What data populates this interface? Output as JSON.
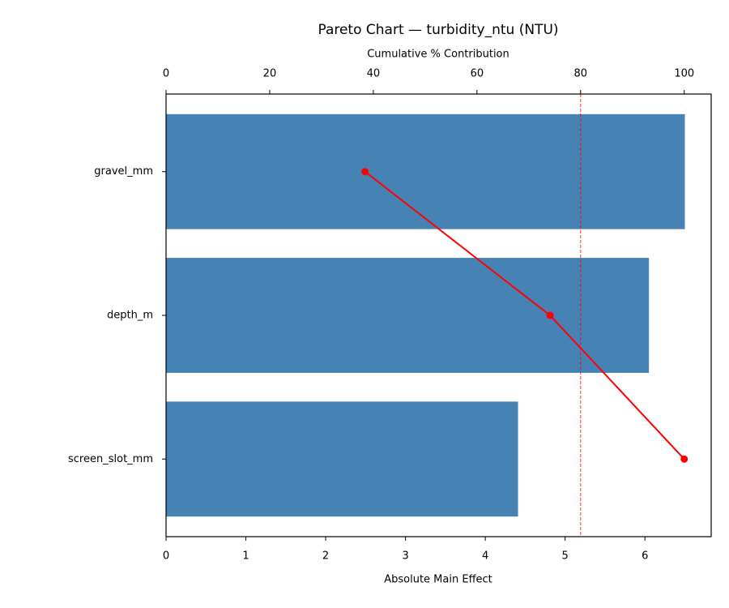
{
  "chart_data": {
    "type": "pareto",
    "title": "Pareto Chart — turbidity_ntu (NTU)",
    "xlabel": "Absolute Main Effect",
    "x2label": "Cumulative % Contribution",
    "categories": [
      "gravel_mm",
      "depth_m",
      "screen_slot_mm"
    ],
    "values": [
      6.5,
      6.05,
      4.41
    ],
    "color": "#4682b4",
    "cumulative": {
      "values": [
        38.4,
        74.1,
        100
      ],
      "color": "#ff0000"
    },
    "threshold": 80,
    "threshold_color": "#ff0000",
    "xlim": [
      0,
      6.83
    ],
    "xticks": [
      0,
      1,
      2,
      3,
      4,
      5,
      6
    ],
    "x2lim": [
      0,
      105.2
    ],
    "x2ticks": [
      0,
      20,
      40,
      60,
      80,
      100
    ]
  }
}
